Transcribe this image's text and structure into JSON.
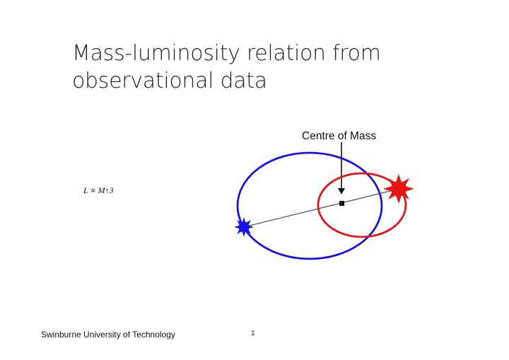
{
  "slide": {
    "title_line1": "Mass-luminosity relation from",
    "title_line2": "observational data",
    "formula": "L ∝ M↑3",
    "footer": "Swinburne University of Technology",
    "page_number": "1"
  },
  "diagram": {
    "centre_of_mass_label": "Centre of Mass",
    "colors": {
      "blue_star": "#1414e6",
      "red_star": "#e61414",
      "axis_line": "#555555",
      "arrow": "#111111"
    }
  }
}
